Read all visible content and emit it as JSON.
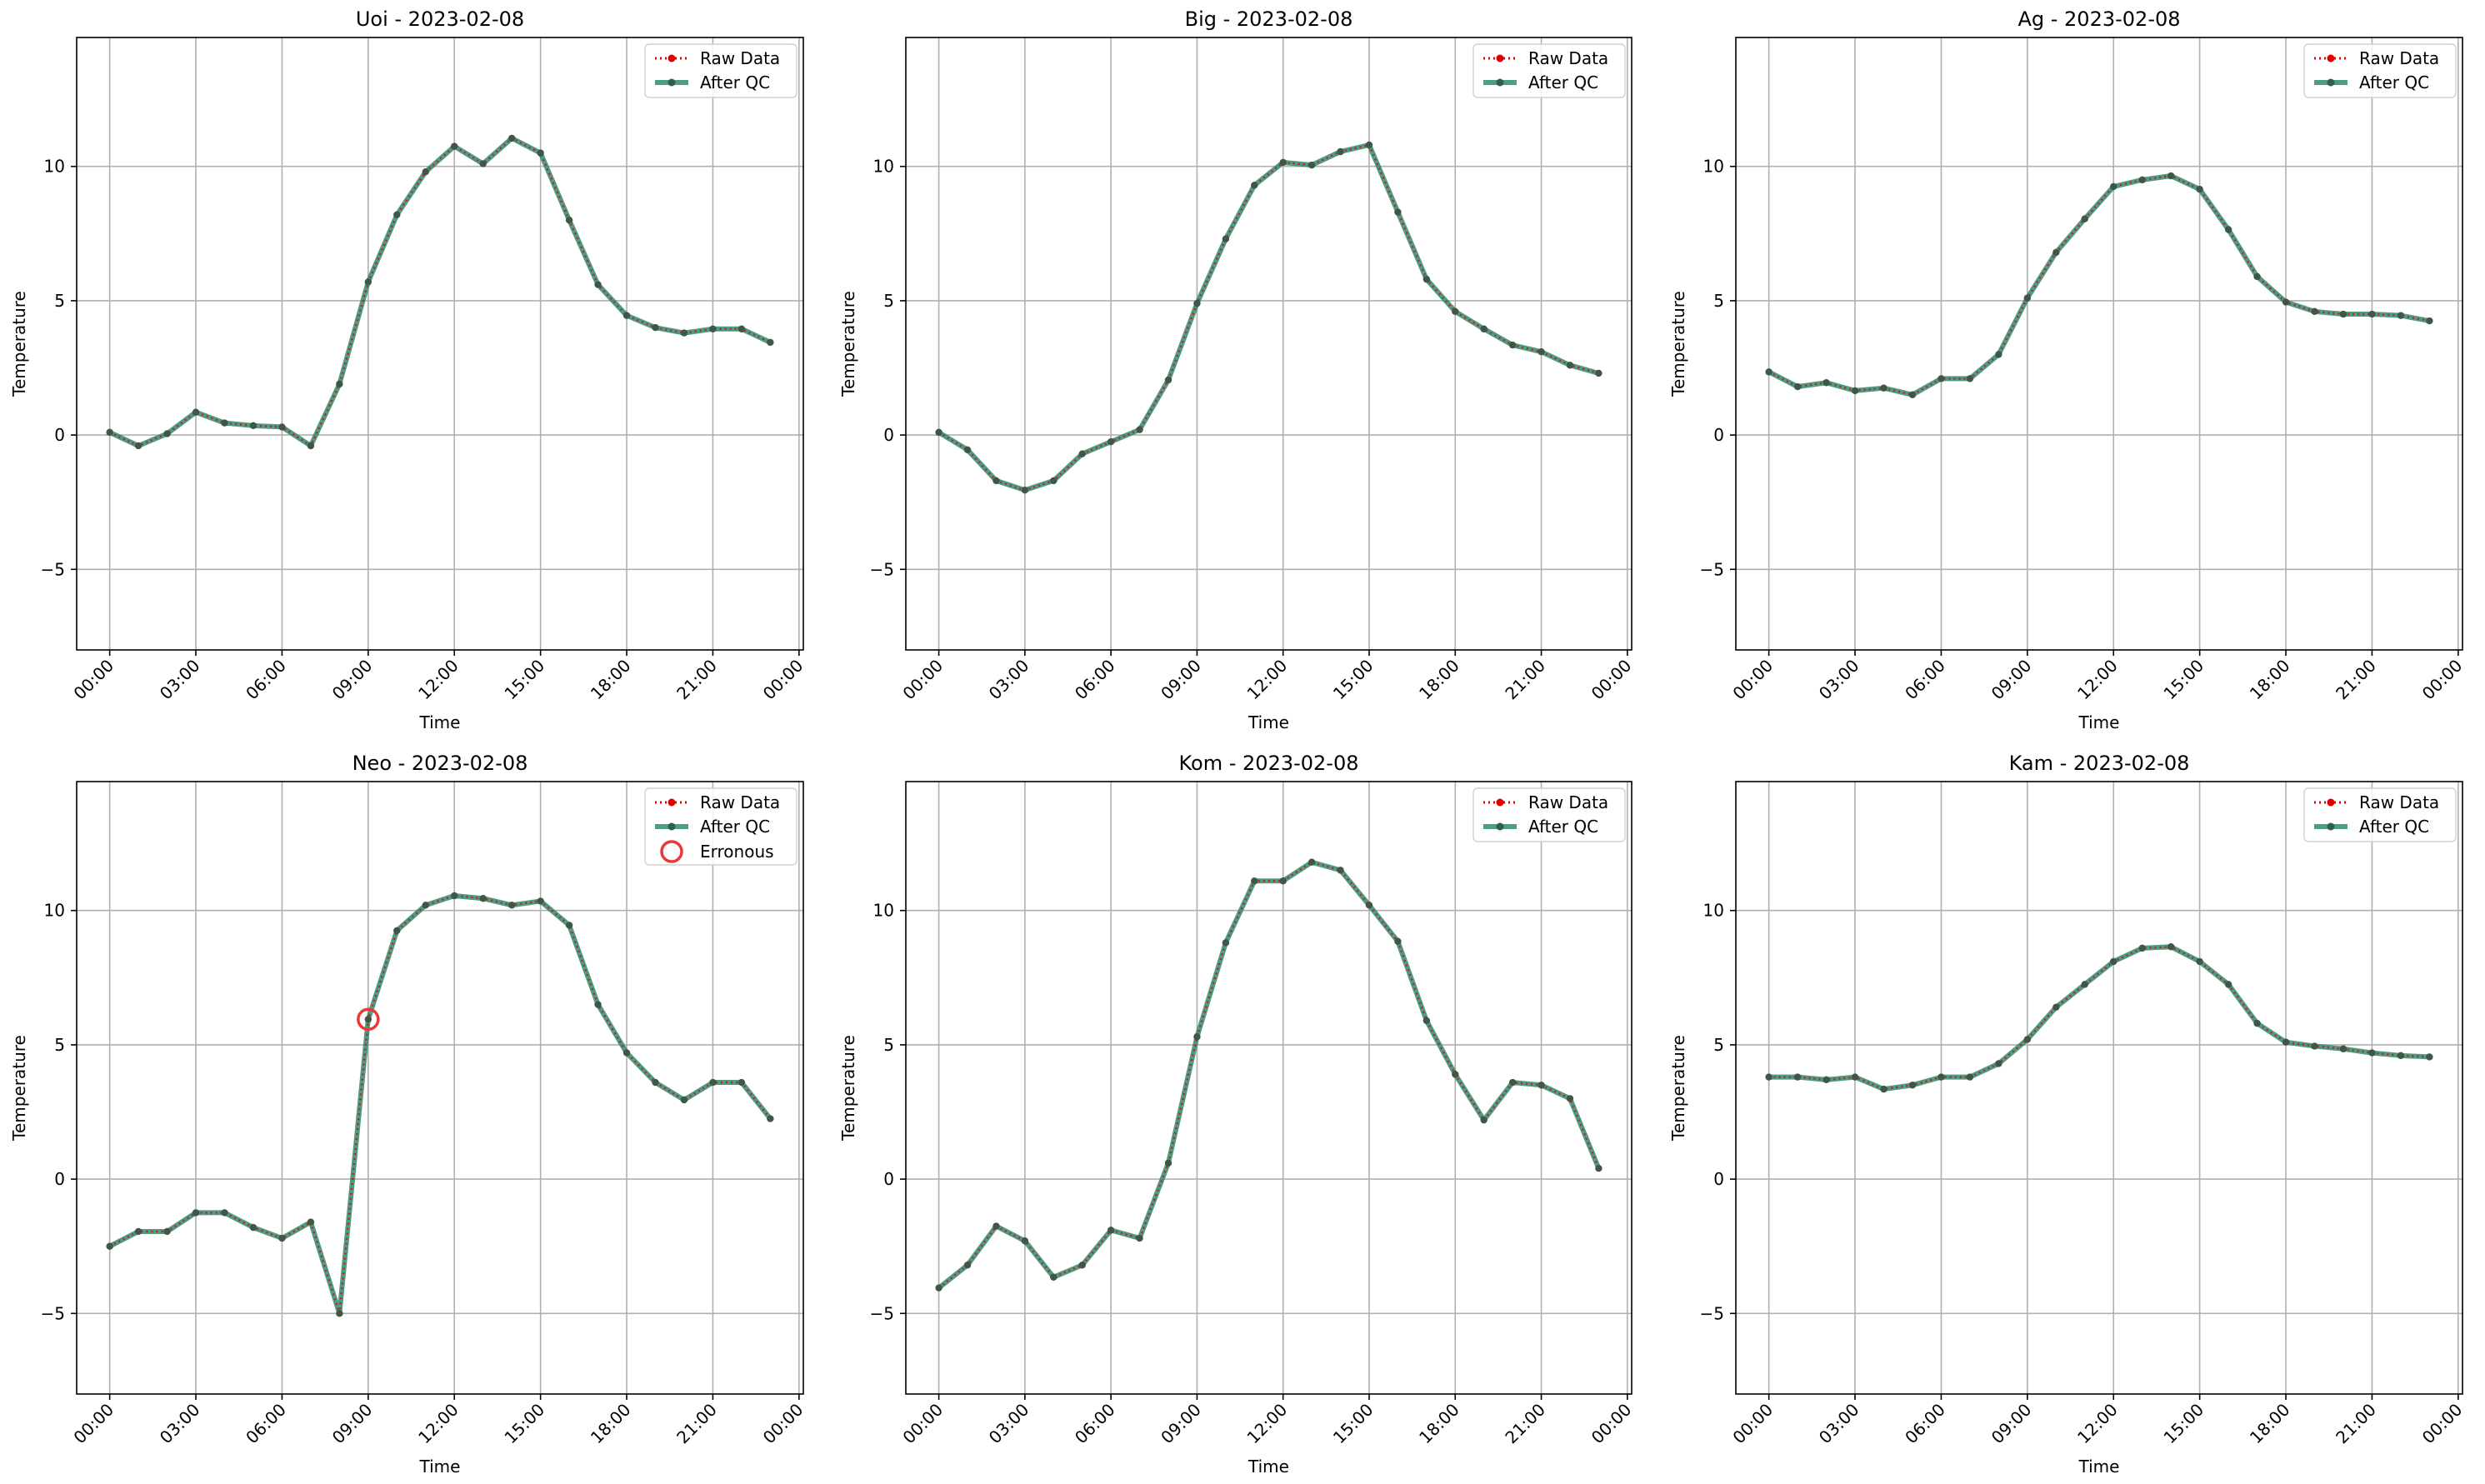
{
  "figure": {
    "colors": {
      "raw": "#e00000",
      "qc": "#2e8b6e",
      "qc_marker": "#2f5f4f",
      "erroneous": "#e83a3a",
      "grid": "#b0b0b0"
    }
  },
  "legend_labels": {
    "raw": "Raw Data",
    "qc": "After QC",
    "erroneous": "Erronous"
  },
  "chart_data": [
    {
      "type": "line",
      "title": "Uoi - 2023-02-08",
      "xlabel": "Time",
      "ylabel": "Temperature",
      "xlim": [
        -1.15,
        24.15
      ],
      "ylim": [
        -8,
        14.8
      ],
      "xticks": [
        0,
        3,
        6,
        9,
        12,
        15,
        18,
        21,
        24
      ],
      "xtick_labels": [
        "00:00",
        "03:00",
        "06:00",
        "09:00",
        "12:00",
        "15:00",
        "18:00",
        "21:00",
        "00:00"
      ],
      "yticks": [
        -5,
        0,
        5,
        10
      ],
      "ytick_labels": [
        "−5",
        "0",
        "5",
        "10"
      ],
      "grid": true,
      "legend_position": "top-right",
      "x_hours": [
        0,
        1,
        2,
        3,
        4,
        5,
        6,
        7,
        8,
        9,
        10,
        11,
        12,
        13,
        14,
        15,
        16,
        17,
        18,
        19,
        20,
        21,
        22,
        23
      ],
      "series": [
        {
          "name": "Raw Data",
          "values": [
            0.1,
            -0.4,
            0.05,
            0.85,
            0.45,
            0.35,
            0.3,
            -0.4,
            1.9,
            5.7,
            8.2,
            9.8,
            10.75,
            10.1,
            11.05,
            10.5,
            8.0,
            5.6,
            4.45,
            4.0,
            3.8,
            3.95,
            3.95,
            3.45
          ]
        },
        {
          "name": "After QC",
          "values": [
            0.1,
            -0.4,
            0.05,
            0.85,
            0.45,
            0.35,
            0.3,
            -0.4,
            1.9,
            5.7,
            8.2,
            9.8,
            10.75,
            10.1,
            11.05,
            10.5,
            8.0,
            5.6,
            4.45,
            4.0,
            3.8,
            3.95,
            3.95,
            3.45
          ]
        }
      ],
      "erroneous": []
    },
    {
      "type": "line",
      "title": "Big - 2023-02-08",
      "xlabel": "Time",
      "ylabel": "Temperature",
      "xlim": [
        -1.15,
        24.15
      ],
      "ylim": [
        -8,
        14.8
      ],
      "xticks": [
        0,
        3,
        6,
        9,
        12,
        15,
        18,
        21,
        24
      ],
      "xtick_labels": [
        "00:00",
        "03:00",
        "06:00",
        "09:00",
        "12:00",
        "15:00",
        "18:00",
        "21:00",
        "00:00"
      ],
      "yticks": [
        -5,
        0,
        5,
        10
      ],
      "ytick_labels": [
        "−5",
        "0",
        "5",
        "10"
      ],
      "grid": true,
      "legend_position": "top-right",
      "x_hours": [
        0,
        1,
        2,
        3,
        4,
        5,
        6,
        7,
        8,
        9,
        10,
        11,
        12,
        13,
        14,
        15,
        16,
        17,
        18,
        19,
        20,
        21,
        22,
        23
      ],
      "series": [
        {
          "name": "Raw Data",
          "values": [
            0.1,
            -0.55,
            -1.7,
            -2.05,
            -1.7,
            -0.7,
            -0.25,
            0.2,
            2.05,
            4.9,
            7.3,
            9.3,
            10.15,
            10.05,
            10.55,
            10.8,
            8.3,
            5.8,
            4.6,
            3.95,
            3.35,
            3.1,
            2.6,
            2.3
          ]
        },
        {
          "name": "After QC",
          "values": [
            0.1,
            -0.55,
            -1.7,
            -2.05,
            -1.7,
            -0.7,
            -0.25,
            0.2,
            2.05,
            4.9,
            7.3,
            9.3,
            10.15,
            10.05,
            10.55,
            10.8,
            8.3,
            5.8,
            4.6,
            3.95,
            3.35,
            3.1,
            2.6,
            2.3
          ]
        }
      ],
      "erroneous": []
    },
    {
      "type": "line",
      "title": "Ag - 2023-02-08",
      "xlabel": "Time",
      "ylabel": "Temperature",
      "xlim": [
        -1.15,
        24.15
      ],
      "ylim": [
        -8,
        14.8
      ],
      "xticks": [
        0,
        3,
        6,
        9,
        12,
        15,
        18,
        21,
        24
      ],
      "xtick_labels": [
        "00:00",
        "03:00",
        "06:00",
        "09:00",
        "12:00",
        "15:00",
        "18:00",
        "21:00",
        "00:00"
      ],
      "yticks": [
        -5,
        0,
        5,
        10
      ],
      "ytick_labels": [
        "−5",
        "0",
        "5",
        "10"
      ],
      "grid": true,
      "legend_position": "top-right",
      "x_hours": [
        0,
        1,
        2,
        3,
        4,
        5,
        6,
        7,
        8,
        9,
        10,
        11,
        12,
        13,
        14,
        15,
        16,
        17,
        18,
        19,
        20,
        21,
        22,
        23
      ],
      "series": [
        {
          "name": "Raw Data",
          "values": [
            2.35,
            1.8,
            1.95,
            1.65,
            1.75,
            1.5,
            2.1,
            2.1,
            3.0,
            5.1,
            6.8,
            8.05,
            9.25,
            9.5,
            9.65,
            9.15,
            7.65,
            5.9,
            4.95,
            4.6,
            4.5,
            4.5,
            4.45,
            4.25
          ]
        },
        {
          "name": "After QC",
          "values": [
            2.35,
            1.8,
            1.95,
            1.65,
            1.75,
            1.5,
            2.1,
            2.1,
            3.0,
            5.1,
            6.8,
            8.05,
            9.25,
            9.5,
            9.65,
            9.15,
            7.65,
            5.9,
            4.95,
            4.6,
            4.5,
            4.5,
            4.45,
            4.25
          ]
        }
      ],
      "erroneous": []
    },
    {
      "type": "line",
      "title": "Neo - 2023-02-08",
      "xlabel": "Time",
      "ylabel": "Temperature",
      "xlim": [
        -1.15,
        24.15
      ],
      "ylim": [
        -8,
        14.8
      ],
      "xticks": [
        0,
        3,
        6,
        9,
        12,
        15,
        18,
        21,
        24
      ],
      "xtick_labels": [
        "00:00",
        "03:00",
        "06:00",
        "09:00",
        "12:00",
        "15:00",
        "18:00",
        "21:00",
        "00:00"
      ],
      "yticks": [
        -5,
        0,
        5,
        10
      ],
      "ytick_labels": [
        "−5",
        "0",
        "5",
        "10"
      ],
      "grid": true,
      "legend_position": "top-right",
      "x_hours": [
        0,
        1,
        2,
        3,
        4,
        5,
        6,
        7,
        8,
        9,
        10,
        11,
        12,
        13,
        14,
        15,
        16,
        17,
        18,
        19,
        20,
        21,
        22,
        23
      ],
      "series": [
        {
          "name": "Raw Data",
          "values": [
            -2.5,
            -1.95,
            -1.95,
            -1.25,
            -1.25,
            -1.8,
            -2.2,
            -1.6,
            -5.0,
            5.95,
            9.25,
            10.2,
            10.55,
            10.45,
            10.2,
            10.35,
            9.45,
            6.5,
            4.7,
            3.6,
            2.95,
            3.6,
            3.6,
            2.25
          ]
        },
        {
          "name": "After QC",
          "values": [
            -2.5,
            -1.95,
            -1.95,
            -1.25,
            -1.25,
            -1.8,
            -2.2,
            -1.6,
            -5.0,
            5.95,
            9.25,
            10.2,
            10.55,
            10.45,
            10.2,
            10.35,
            9.45,
            6.5,
            4.7,
            3.6,
            2.95,
            3.6,
            3.6,
            2.25
          ]
        }
      ],
      "erroneous": [
        {
          "x": 9,
          "y": 5.95
        }
      ]
    },
    {
      "type": "line",
      "title": "Kom - 2023-02-08",
      "xlabel": "Time",
      "ylabel": "Temperature",
      "xlim": [
        -1.15,
        24.15
      ],
      "ylim": [
        -8,
        14.8
      ],
      "xticks": [
        0,
        3,
        6,
        9,
        12,
        15,
        18,
        21,
        24
      ],
      "xtick_labels": [
        "00:00",
        "03:00",
        "06:00",
        "09:00",
        "12:00",
        "15:00",
        "18:00",
        "21:00",
        "00:00"
      ],
      "yticks": [
        -5,
        0,
        5,
        10
      ],
      "ytick_labels": [
        "−5",
        "0",
        "5",
        "10"
      ],
      "grid": true,
      "legend_position": "top-right",
      "x_hours": [
        0,
        1,
        2,
        3,
        4,
        5,
        6,
        7,
        8,
        9,
        10,
        11,
        12,
        13,
        14,
        15,
        16,
        17,
        18,
        19,
        20,
        21,
        22,
        23
      ],
      "series": [
        {
          "name": "Raw Data",
          "values": [
            -4.05,
            -3.2,
            -1.75,
            -2.3,
            -3.65,
            -3.2,
            -1.9,
            -2.2,
            0.6,
            5.3,
            8.8,
            11.1,
            11.1,
            11.8,
            11.5,
            10.2,
            8.85,
            5.9,
            3.9,
            2.2,
            3.6,
            3.5,
            3.0,
            0.4
          ]
        },
        {
          "name": "After QC",
          "values": [
            -4.05,
            -3.2,
            -1.75,
            -2.3,
            -3.65,
            -3.2,
            -1.9,
            -2.2,
            0.6,
            5.3,
            8.8,
            11.1,
            11.1,
            11.8,
            11.5,
            10.2,
            8.85,
            5.9,
            3.9,
            2.2,
            3.6,
            3.5,
            3.0,
            0.4
          ]
        }
      ],
      "erroneous": []
    },
    {
      "type": "line",
      "title": "Kam - 2023-02-08",
      "xlabel": "Time",
      "ylabel": "Temperature",
      "xlim": [
        -1.15,
        24.15
      ],
      "ylim": [
        -8,
        14.8
      ],
      "xticks": [
        0,
        3,
        6,
        9,
        12,
        15,
        18,
        21,
        24
      ],
      "xtick_labels": [
        "00:00",
        "03:00",
        "06:00",
        "09:00",
        "12:00",
        "15:00",
        "18:00",
        "21:00",
        "00:00"
      ],
      "yticks": [
        -5,
        0,
        5,
        10
      ],
      "ytick_labels": [
        "−5",
        "0",
        "5",
        "10"
      ],
      "grid": true,
      "legend_position": "top-right",
      "x_hours": [
        0,
        1,
        2,
        3,
        4,
        5,
        6,
        7,
        8,
        9,
        10,
        11,
        12,
        13,
        14,
        15,
        16,
        17,
        18,
        19,
        20,
        21,
        22,
        23
      ],
      "series": [
        {
          "name": "Raw Data",
          "values": [
            3.8,
            3.8,
            3.7,
            3.8,
            3.35,
            3.5,
            3.8,
            3.8,
            4.3,
            5.2,
            6.4,
            7.25,
            8.1,
            8.6,
            8.65,
            8.1,
            7.25,
            5.8,
            5.1,
            4.95,
            4.85,
            4.7,
            4.6,
            4.55
          ]
        },
        {
          "name": "After QC",
          "values": [
            3.8,
            3.8,
            3.7,
            3.8,
            3.35,
            3.5,
            3.8,
            3.8,
            4.3,
            5.2,
            6.4,
            7.25,
            8.1,
            8.6,
            8.65,
            8.1,
            7.25,
            5.8,
            5.1,
            4.95,
            4.85,
            4.7,
            4.6,
            4.55
          ]
        }
      ],
      "erroneous": []
    }
  ]
}
